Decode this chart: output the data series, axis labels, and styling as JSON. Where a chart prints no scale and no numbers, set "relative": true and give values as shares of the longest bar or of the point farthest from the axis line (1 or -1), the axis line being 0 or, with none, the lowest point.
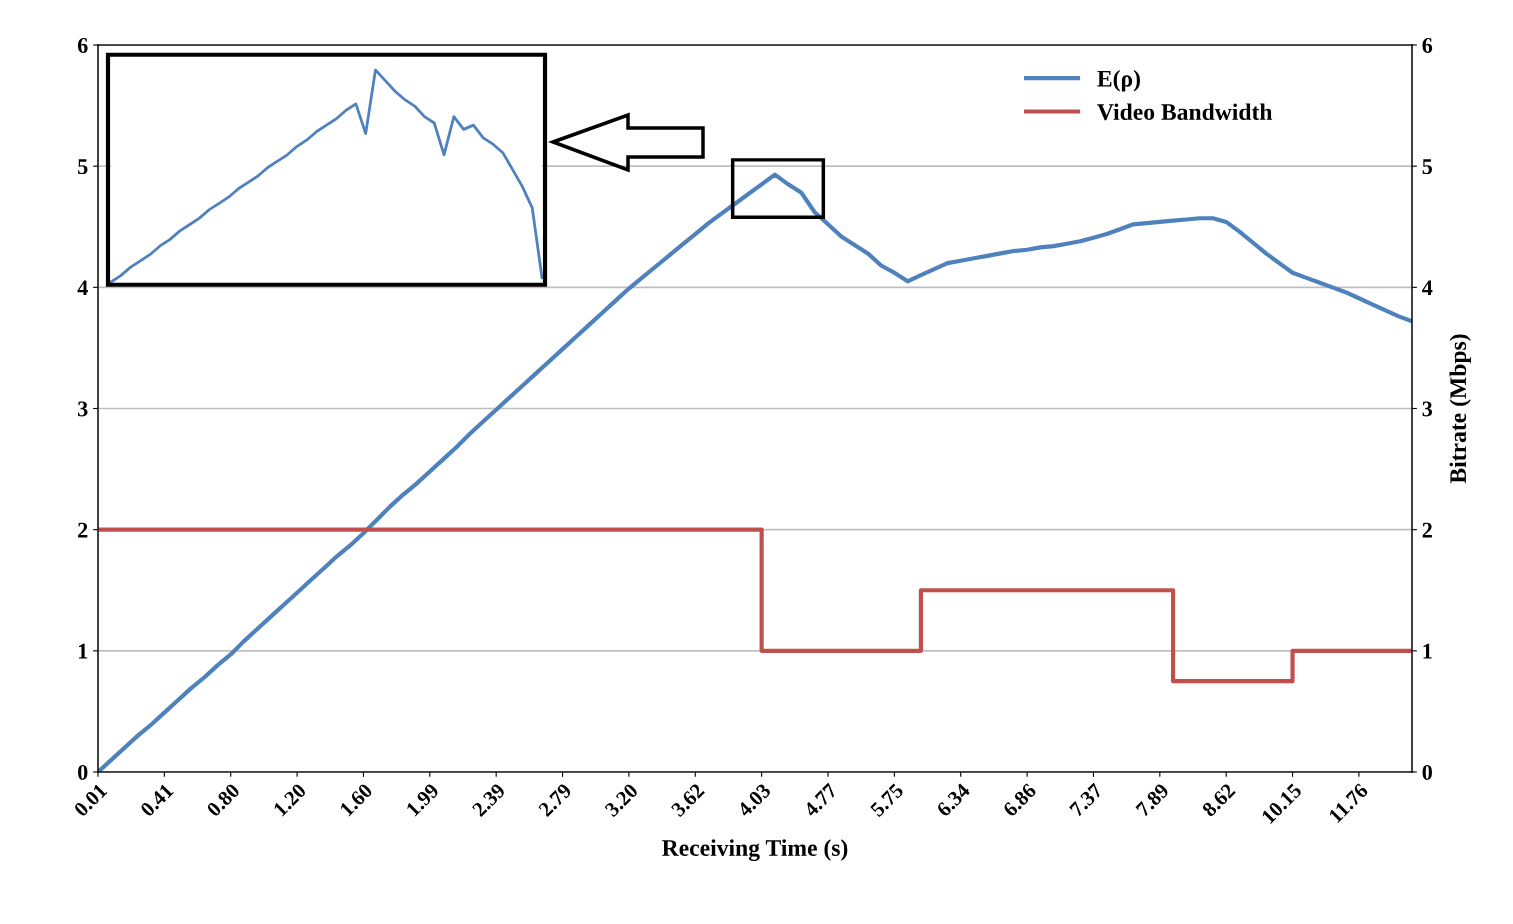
{
  "chart_data": [
    {
      "type": "line",
      "xlabel": "Receiving Time (s)",
      "y2label": "Bitrate (Mbps)",
      "categories": [
        "0.01",
        null,
        null,
        null,
        null,
        "0.41",
        null,
        null,
        null,
        null,
        "0.80",
        null,
        null,
        null,
        null,
        "1.20",
        null,
        null,
        null,
        null,
        "1.60",
        null,
        null,
        null,
        null,
        "1.99",
        null,
        null,
        null,
        null,
        "2.39",
        null,
        null,
        null,
        null,
        "2.79",
        null,
        null,
        null,
        null,
        "3.20",
        null,
        null,
        null,
        null,
        "3.62",
        null,
        null,
        null,
        null,
        "4.03",
        null,
        null,
        null,
        null,
        "4.77",
        null,
        null,
        null,
        null,
        "5.75",
        null,
        null,
        null,
        null,
        "6.34",
        null,
        null,
        null,
        null,
        "6.86",
        null,
        null,
        null,
        null,
        "7.37",
        null,
        null,
        null,
        null,
        "7.89",
        null,
        null,
        null,
        null,
        "8.62",
        null,
        null,
        null,
        null,
        "10.15",
        null,
        null,
        null,
        null,
        "11.76",
        null,
        null,
        null,
        null
      ],
      "series": [
        {
          "name": "E(ρ)",
          "color": "#4f81bd",
          "type": "line",
          "values": [
            0.0,
            0.1,
            0.2,
            0.3,
            0.39,
            0.49,
            0.59,
            0.69,
            0.78,
            0.88,
            0.97,
            1.08,
            1.18,
            1.28,
            1.38,
            1.48,
            1.58,
            1.68,
            1.78,
            1.87,
            1.97,
            2.08,
            2.19,
            2.29,
            2.38,
            2.48,
            2.58,
            2.68,
            2.79,
            2.89,
            2.99,
            3.09,
            3.19,
            3.29,
            3.39,
            3.49,
            3.59,
            3.69,
            3.79,
            3.89,
            3.99,
            4.08,
            4.17,
            4.26,
            4.35,
            4.44,
            4.53,
            4.61,
            4.69,
            4.77,
            4.85,
            4.93,
            4.85,
            4.78,
            4.62,
            4.52,
            4.42,
            4.35,
            4.28,
            4.18,
            4.12,
            4.05,
            4.1,
            4.15,
            4.2,
            4.22,
            4.24,
            4.26,
            4.28,
            4.3,
            4.31,
            4.33,
            4.34,
            4.36,
            4.38,
            4.41,
            4.44,
            4.48,
            4.52,
            4.53,
            4.54,
            4.55,
            4.56,
            4.57,
            4.57,
            4.54,
            4.46,
            4.37,
            4.28,
            4.2,
            4.12,
            4.08,
            4.04,
            4.0,
            3.96,
            3.91,
            3.86,
            3.81,
            3.76,
            3.72
          ]
        },
        {
          "name": "Video Bandwidth",
          "color": "#c0504d",
          "type": "step",
          "axis": "y2",
          "values": [
            2,
            2,
            2,
            2,
            2,
            2,
            2,
            2,
            2,
            2,
            2,
            2,
            2,
            2,
            2,
            2,
            2,
            2,
            2,
            2,
            2,
            2,
            2,
            2,
            2,
            2,
            2,
            2,
            2,
            2,
            2,
            2,
            2,
            2,
            2,
            2,
            2,
            2,
            2,
            2,
            2,
            2,
            2,
            2,
            2,
            2,
            2,
            2,
            2,
            2,
            1,
            1,
            1,
            1,
            1,
            1,
            1,
            1,
            1,
            1,
            1,
            1,
            1.5,
            1.5,
            1.5,
            1.5,
            1.5,
            1.5,
            1.5,
            1.5,
            1.5,
            1.5,
            1.5,
            1.5,
            1.5,
            1.5,
            1.5,
            1.5,
            1.5,
            1.5,
            1.5,
            0.75,
            0.75,
            0.75,
            0.75,
            0.75,
            0.75,
            0.75,
            0.75,
            0.75,
            1,
            1,
            1,
            1,
            1,
            1,
            1,
            1,
            1,
            1
          ]
        }
      ],
      "ylim": [
        0,
        6
      ],
      "yticks": [
        0,
        1,
        2,
        3,
        4,
        5,
        6
      ],
      "y2lim": [
        0,
        6
      ],
      "y2ticks": [
        0,
        1,
        2,
        3,
        4,
        5,
        6
      ],
      "grid": "y",
      "legend": "top right"
    },
    {
      "type": "line",
      "relative": true,
      "categories": [
        null,
        null,
        null,
        null,
        null,
        null,
        null,
        null,
        null,
        null,
        null,
        null,
        null,
        null,
        null,
        null,
        null,
        null,
        null,
        null,
        null,
        null,
        null,
        null,
        null,
        null,
        null,
        null,
        null,
        null,
        null,
        null,
        null,
        null,
        null,
        null,
        null,
        null,
        null,
        null,
        null,
        null,
        null,
        null,
        null
      ],
      "series": [
        {
          "color": "#4f81bd",
          "values": [
            0,
            0.03,
            0.07,
            0.1,
            0.13,
            0.17,
            0.2,
            0.24,
            0.27,
            0.3,
            0.34,
            0.37,
            0.4,
            0.44,
            0.47,
            0.5,
            0.54,
            0.57,
            0.6,
            0.64,
            0.67,
            0.71,
            0.74,
            0.77,
            0.81,
            0.84,
            0.7,
            1.0,
            0.95,
            0.9,
            0.86,
            0.83,
            0.78,
            0.75,
            0.6,
            0.78,
            0.72,
            0.74,
            0.68,
            0.65,
            0.61,
            0.53,
            0.45,
            0.35,
            0.02
          ]
        }
      ]
    }
  ]
}
